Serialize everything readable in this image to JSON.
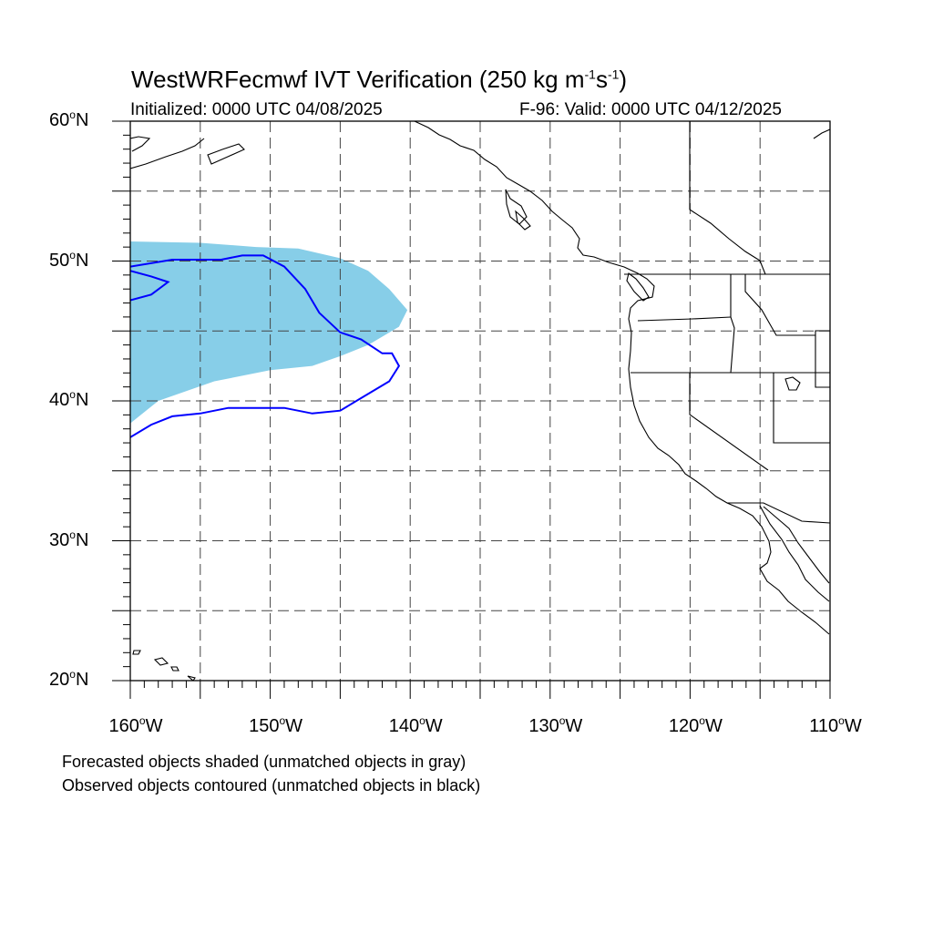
{
  "title": {
    "main": "WestWRFecmwf IVT Verification (250 kg m",
    "exp1": "-1",
    "mid": "s",
    "exp2": "-1",
    "close": ")"
  },
  "subtitle": {
    "left": "Initialized: 0000 UTC 04/08/2025",
    "right": "F-96: Valid: 0000 UTC 04/12/2025"
  },
  "map": {
    "lon_range": [
      -160,
      -110
    ],
    "lat_range": [
      20,
      60
    ],
    "gridlines": "dashed",
    "lat_ticks": [
      {
        "value": 60,
        "num": "60",
        "deg": "o",
        "hemi": "N"
      },
      {
        "value": 50,
        "num": "50",
        "deg": "o",
        "hemi": "N"
      },
      {
        "value": 40,
        "num": "40",
        "deg": "o",
        "hemi": "N"
      },
      {
        "value": 30,
        "num": "30",
        "deg": "o",
        "hemi": "N"
      },
      {
        "value": 20,
        "num": "20",
        "deg": "o",
        "hemi": "N"
      }
    ],
    "lon_ticks": [
      {
        "value": -160,
        "num": "160",
        "deg": "o",
        "hemi": "W"
      },
      {
        "value": -150,
        "num": "150",
        "deg": "o",
        "hemi": "W"
      },
      {
        "value": -140,
        "num": "140",
        "deg": "o",
        "hemi": "W"
      },
      {
        "value": -130,
        "num": "130",
        "deg": "o",
        "hemi": "W"
      },
      {
        "value": -120,
        "num": "120",
        "deg": "o",
        "hemi": "W"
      },
      {
        "value": -110,
        "num": "110",
        "deg": "o",
        "hemi": "W"
      }
    ],
    "forecast_object": {
      "color": "#87CEE8",
      "outline": [
        [
          -160,
          51.4
        ],
        [
          -155,
          51.3
        ],
        [
          -151,
          51
        ],
        [
          -148,
          50.9
        ],
        [
          -145,
          50.2
        ],
        [
          -143,
          49.3
        ],
        [
          -141.5,
          48
        ],
        [
          -140.2,
          46.5
        ],
        [
          -140.8,
          45.3
        ],
        [
          -143,
          44
        ],
        [
          -145,
          43.2
        ],
        [
          -147,
          42.5
        ],
        [
          -150,
          42.2
        ],
        [
          -152,
          41.8
        ],
        [
          -154,
          41.4
        ],
        [
          -156,
          40.7
        ],
        [
          -158,
          40
        ],
        [
          -160,
          38.4
        ]
      ]
    },
    "observed_object": {
      "color": "#0000FF",
      "outline": [
        [
          -160,
          49.6
        ],
        [
          -157,
          50.1
        ],
        [
          -153.5,
          50.1
        ],
        [
          -152,
          50.4
        ],
        [
          -150.5,
          50.4
        ],
        [
          -149,
          49.6
        ],
        [
          -147.5,
          48
        ],
        [
          -146.5,
          46.3
        ],
        [
          -145,
          44.9
        ],
        [
          -143.5,
          44.4
        ],
        [
          -142,
          43.4
        ],
        [
          -141.3,
          43.4
        ],
        [
          -140.8,
          42.5
        ],
        [
          -141.5,
          41.4
        ],
        [
          -143.5,
          40.2
        ],
        [
          -145,
          39.3
        ],
        [
          -147,
          39.1
        ],
        [
          -149,
          39.5
        ],
        [
          -153,
          39.5
        ],
        [
          -155,
          39.1
        ],
        [
          -157,
          38.9
        ],
        [
          -158.5,
          38.3
        ],
        [
          -160,
          37.4
        ]
      ],
      "inner_outline": [
        [
          -160,
          49.3
        ],
        [
          -158.5,
          48.9
        ],
        [
          -157.3,
          48.5
        ],
        [
          -158.5,
          47.6
        ],
        [
          -160,
          47.2
        ]
      ]
    }
  },
  "footer": {
    "line1": "Forecasted objects shaded (unmatched objects in gray)",
    "line2": "Observed objects contoured (unmatched objects in black)"
  }
}
